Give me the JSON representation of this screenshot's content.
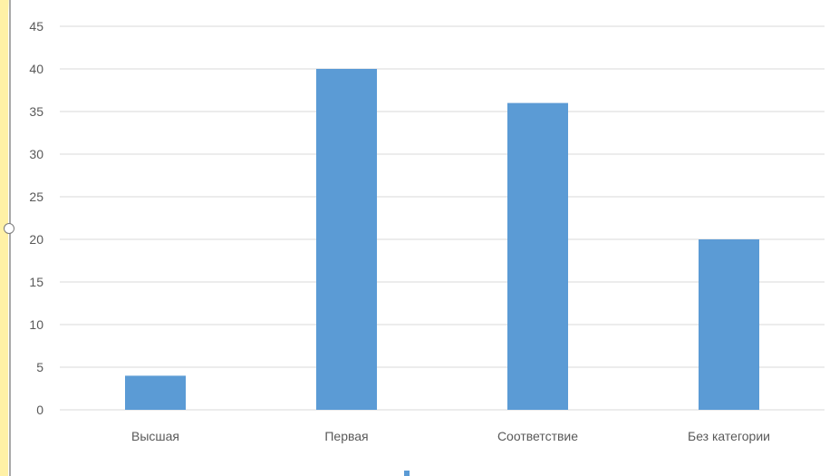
{
  "chart_data": {
    "type": "bar",
    "categories": [
      "Высшая",
      "Первая",
      "Соответствие",
      "Без категории"
    ],
    "series": [
      {
        "values": [
          4,
          40,
          36,
          20
        ],
        "color": "#5b9bd5"
      }
    ],
    "yticks": [
      "0",
      "5",
      "10",
      "15",
      "20",
      "25",
      "30",
      "35",
      "40",
      "45"
    ],
    "ylim": [
      0,
      45
    ],
    "grid": true,
    "gridline_color": "#d9d9d9",
    "legend": "bottom"
  }
}
